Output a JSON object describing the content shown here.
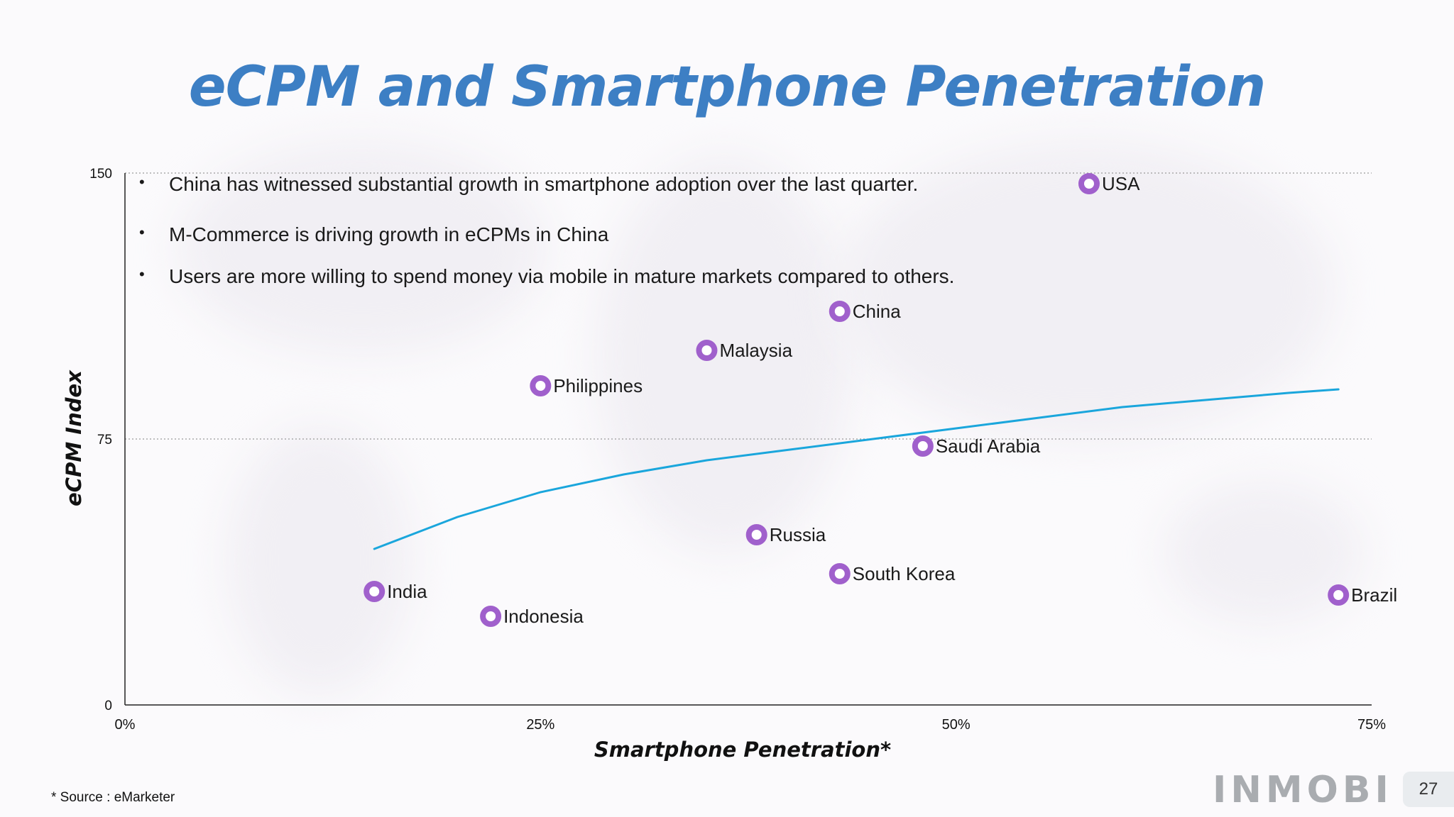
{
  "slide": {
    "title": "eCPM and Smartphone Penetration",
    "bullets": [
      "China has witnessed substantial growth in smartphone adoption over the last quarter.",
      "M-Commerce is driving growth in eCPMs in China",
      "Users are more willing to spend money via mobile in mature markets compared to others."
    ],
    "source": "* Source : eMarketer",
    "logo": "INMOBI",
    "page_number": "27"
  },
  "chart_data": {
    "type": "scatter",
    "xlabel": "Smartphone Penetration*",
    "ylabel": "eCPM Index",
    "xlim": [
      0,
      75
    ],
    "ylim": [
      0,
      150
    ],
    "x_ticks": [
      "0%",
      "25%",
      "50%",
      "75%"
    ],
    "x_tick_values": [
      0,
      25,
      50,
      75
    ],
    "y_ticks": [
      "0",
      "75",
      "150"
    ],
    "y_tick_values": [
      0,
      75,
      150
    ],
    "grid": "horizontal dotted at 75 and 150",
    "marker_color": "#a060cc",
    "trend_color": "#1aa6dc",
    "points": [
      {
        "label": "USA",
        "x": 58,
        "y": 147
      },
      {
        "label": "China",
        "x": 43,
        "y": 111
      },
      {
        "label": "Malaysia",
        "x": 35,
        "y": 100
      },
      {
        "label": "Philippines",
        "x": 25,
        "y": 90
      },
      {
        "label": "Saudi Arabia",
        "x": 48,
        "y": 73
      },
      {
        "label": "Russia",
        "x": 38,
        "y": 48
      },
      {
        "label": "South Korea",
        "x": 43,
        "y": 37
      },
      {
        "label": "India",
        "x": 15,
        "y": 32
      },
      {
        "label": "Indonesia",
        "x": 22,
        "y": 25
      },
      {
        "label": "Brazil",
        "x": 73,
        "y": 31
      }
    ],
    "trendline": {
      "type": "logarithmic",
      "points": [
        [
          15,
          44
        ],
        [
          20,
          53
        ],
        [
          25,
          60
        ],
        [
          30,
          65
        ],
        [
          35,
          69
        ],
        [
          40,
          72
        ],
        [
          45,
          75
        ],
        [
          50,
          78
        ],
        [
          55,
          81
        ],
        [
          60,
          84
        ],
        [
          65,
          86
        ],
        [
          70,
          88
        ],
        [
          73,
          89
        ]
      ]
    }
  }
}
